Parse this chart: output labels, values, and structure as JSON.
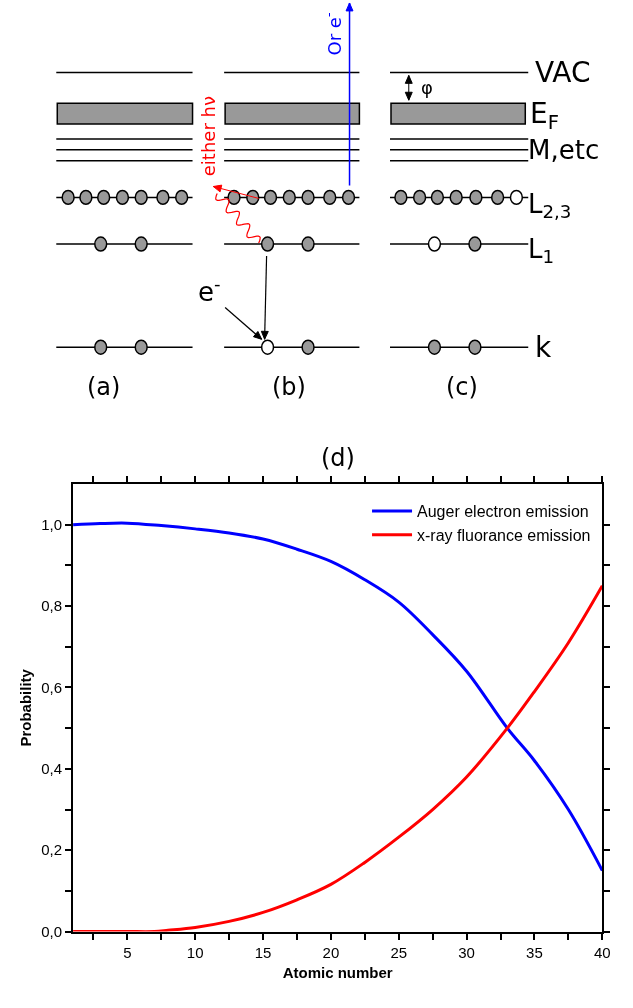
{
  "chart_data": [
    {
      "type": "other",
      "annotations": [
        "VAC",
        "E$_{F}$",
        "M,etc",
        "L$_{2,3}$",
        "L$_{1}$",
        "k",
        "(a)",
        "(b)",
        "(c)",
        "either hν",
        "Or e$^{-}$",
        "e$^{-}$",
        "φ"
      ]
    },
    {
      "type": "line",
      "title": "(d)",
      "xlabel": "Atomic number",
      "ylabel": "Probability",
      "xlim": [
        1,
        40
      ],
      "xticks": [
        {
          "value": 2.5,
          "label": null
        },
        5,
        {
          "value": 7.5,
          "label": null
        },
        10,
        {
          "value": 12.5,
          "label": null
        },
        15,
        {
          "value": 17.5,
          "label": null
        },
        20,
        {
          "value": 22.5,
          "label": null
        },
        25,
        {
          "value": 27.5,
          "label": null
        },
        30,
        {
          "value": 32.5,
          "label": null
        },
        35,
        {
          "value": 37.5,
          "label": null
        },
        40
      ],
      "ylim": [
        0,
        1.1
      ],
      "yticks": [
        {
          "value": 0,
          "label": "0,0"
        },
        {
          "value": 0.1,
          "label": null
        },
        {
          "value": 0.2,
          "label": "0,2"
        },
        {
          "value": 0.3,
          "label": null
        },
        {
          "value": 0.4,
          "label": "0,4"
        },
        {
          "value": 0.5,
          "label": null
        },
        {
          "value": 0.6,
          "label": "0,6"
        },
        {
          "value": 0.7,
          "label": null
        },
        {
          "value": 0.8,
          "label": "0,8"
        },
        {
          "value": 0.9,
          "label": null
        },
        {
          "value": 1.0,
          "label": "1,0"
        }
      ],
      "legend": "top right",
      "marker": "none",
      "line_style": "solid",
      "series": [
        {
          "name": "Auger electron emission",
          "color": "#0000ff",
          "x": [
            1,
            3,
            5,
            7.5,
            10,
            12.5,
            15,
            17.5,
            20,
            22.5,
            25,
            27.5,
            30,
            33,
            35,
            37.5,
            40
          ],
          "values": [
            1.0,
            1.003,
            1.004,
            0.998,
            0.99,
            0.98,
            0.965,
            0.94,
            0.91,
            0.865,
            0.81,
            0.73,
            0.64,
            0.5,
            0.42,
            0.3,
            0.15
          ]
        },
        {
          "name": "x-ray fluorance emission",
          "color": "#ff0000",
          "x": [
            1,
            3,
            5,
            7,
            8,
            10,
            12.5,
            15,
            17.5,
            20,
            22.5,
            25,
            27.5,
            30,
            33,
            35,
            37.5,
            40
          ],
          "values": [
            0,
            0,
            0,
            0,
            0.003,
            0.01,
            0.025,
            0.047,
            0.078,
            0.116,
            0.17,
            0.232,
            0.3,
            0.38,
            0.5,
            0.59,
            0.71,
            0.85
          ]
        }
      ]
    }
  ]
}
